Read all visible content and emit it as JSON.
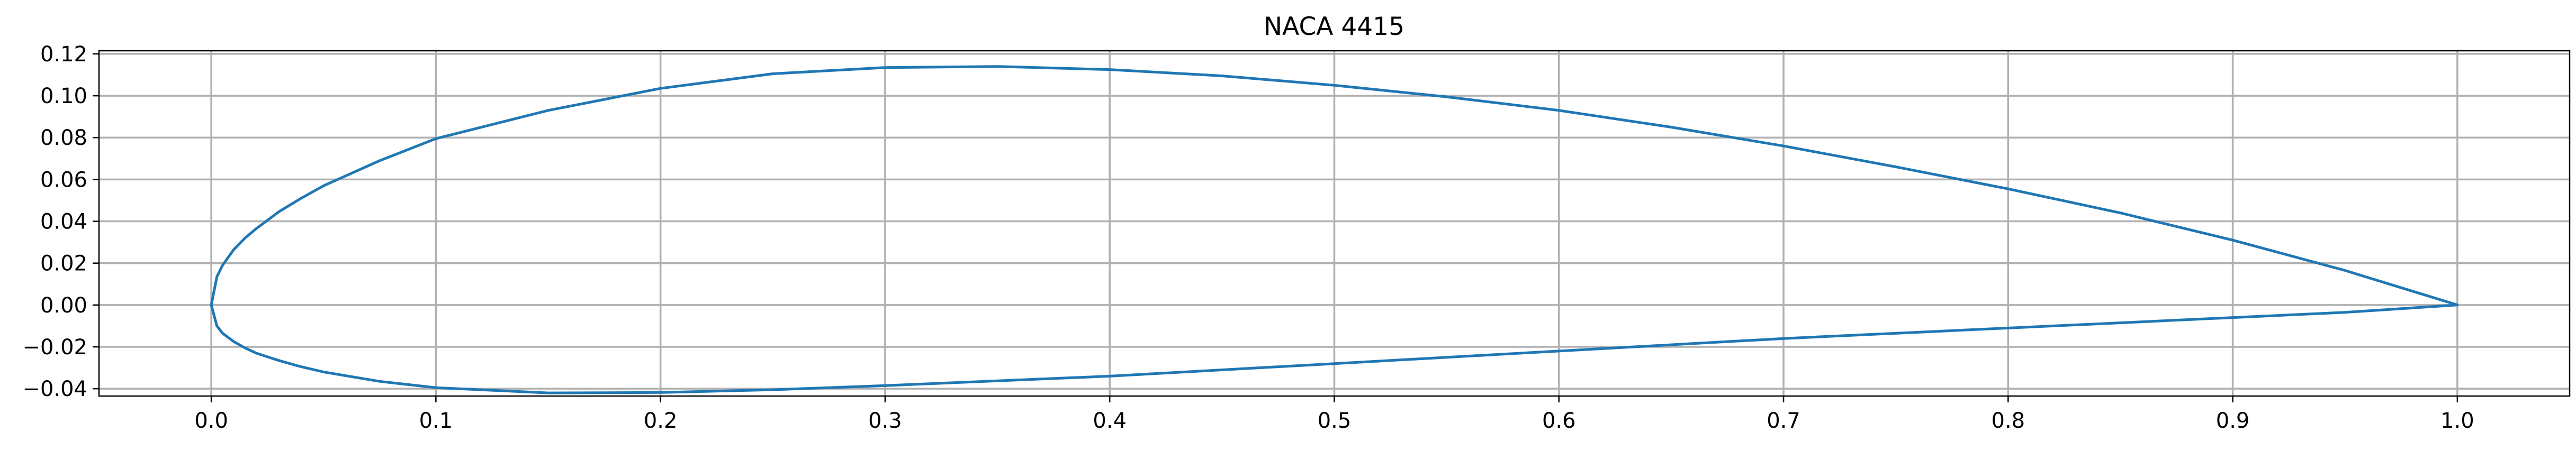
{
  "chart_data": {
    "type": "line",
    "title": "NACA 4415",
    "xlabel": "",
    "ylabel": "",
    "xlim": [
      -0.05,
      1.05
    ],
    "ylim": [
      -0.0435,
      0.1215
    ],
    "grid": true,
    "line_color": "#1f77b4",
    "x_ticks": [
      {
        "value": 0.0,
        "label": "0.0"
      },
      {
        "value": 0.1,
        "label": "0.1"
      },
      {
        "value": 0.2,
        "label": "0.2"
      },
      {
        "value": 0.3,
        "label": "0.3"
      },
      {
        "value": 0.4,
        "label": "0.4"
      },
      {
        "value": 0.5,
        "label": "0.5"
      },
      {
        "value": 0.6,
        "label": "0.6"
      },
      {
        "value": 0.7,
        "label": "0.7"
      },
      {
        "value": 0.8,
        "label": "0.8"
      },
      {
        "value": 0.9,
        "label": "0.9"
      },
      {
        "value": 1.0,
        "label": "1.0"
      }
    ],
    "y_ticks": [
      {
        "value": -0.04,
        "label": "−0.04"
      },
      {
        "value": -0.02,
        "label": "−0.02"
      },
      {
        "value": 0.0,
        "label": "0.00"
      },
      {
        "value": 0.02,
        "label": "0.02"
      },
      {
        "value": 0.04,
        "label": "0.04"
      },
      {
        "value": 0.06,
        "label": "0.06"
      },
      {
        "value": 0.08,
        "label": "0.08"
      },
      {
        "value": 0.1,
        "label": "0.10"
      },
      {
        "value": 0.12,
        "label": "0.12"
      }
    ],
    "series": [
      {
        "x": [
          1.0,
          0.95,
          0.9,
          0.85,
          0.8,
          0.75,
          0.7,
          0.65,
          0.6,
          0.55,
          0.5,
          0.45,
          0.4,
          0.35,
          0.3,
          0.25,
          0.2,
          0.15,
          0.1,
          0.075,
          0.05,
          0.04,
          0.03,
          0.025,
          0.02,
          0.015,
          0.01,
          0.005,
          0.0025,
          0.0,
          0.0025,
          0.005,
          0.01,
          0.015,
          0.02,
          0.03,
          0.04,
          0.05,
          0.075,
          0.1,
          0.15,
          0.2,
          0.25,
          0.3,
          0.4,
          0.5,
          0.6,
          0.7,
          0.8,
          0.9,
          0.95,
          1.0
        ],
        "y": [
          0.0,
          0.0165,
          0.031,
          0.044,
          0.0555,
          0.066,
          0.076,
          0.085,
          0.093,
          0.0995,
          0.105,
          0.1095,
          0.1125,
          0.114,
          0.1135,
          0.1105,
          0.1035,
          0.093,
          0.0795,
          0.069,
          0.057,
          0.051,
          0.0445,
          0.0405,
          0.0365,
          0.032,
          0.0265,
          0.019,
          0.0135,
          0.0,
          -0.01,
          -0.0135,
          -0.0175,
          -0.0205,
          -0.023,
          -0.0265,
          -0.0295,
          -0.032,
          -0.0365,
          -0.0395,
          -0.042,
          -0.0418,
          -0.0405,
          -0.0385,
          -0.034,
          -0.028,
          -0.022,
          -0.016,
          -0.011,
          -0.006,
          -0.0035,
          0.0
        ]
      }
    ]
  }
}
